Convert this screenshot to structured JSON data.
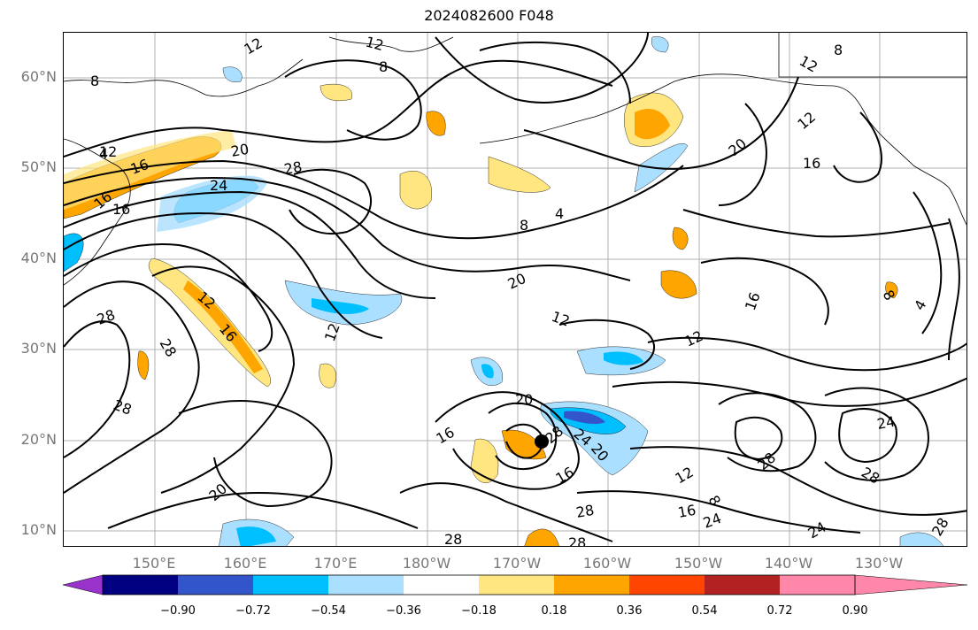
{
  "title": "2024082600 F048",
  "lat_labels": [
    "60°N",
    "50°N",
    "40°N",
    "30°N",
    "20°N",
    "10°N"
  ],
  "lon_labels": [
    "150°E",
    "160°E",
    "170°E",
    "180°W",
    "170°W",
    "160°W",
    "150°W",
    "140°W",
    "130°W"
  ],
  "contour_labels": [
    "12",
    "8",
    "12",
    "4",
    "8",
    "20",
    "16",
    "12",
    "16",
    "28",
    "24",
    "16",
    "8",
    "4",
    "20",
    "28",
    "12",
    "16",
    "28",
    "20",
    "12",
    "12",
    "12",
    "28",
    "16",
    "20",
    "28",
    "24",
    "20",
    "16",
    "28",
    "28",
    "28",
    "16",
    "24",
    "12",
    "8",
    "28",
    "24",
    "28",
    "24",
    "12",
    "8",
    "16",
    "8",
    "4",
    "12",
    "16",
    "20",
    "28"
  ],
  "colorbar": {
    "ticks": [
      "−0.90",
      "−0.72",
      "−0.54",
      "−0.36",
      "−0.18",
      "0.18",
      "0.36",
      "0.54",
      "0.72",
      "0.90"
    ],
    "colors": [
      "#9933cc",
      "#000080",
      "#3355cc",
      "#00bfff",
      "#aadfff",
      "#ffffff",
      "#ffe680",
      "#ffa500",
      "#ff4500",
      "#b22222",
      "#ff88aa"
    ]
  },
  "shading_colors": {
    "light_blue": "#aadfff",
    "blue": "#00bfff",
    "dark_blue": "#3355cc",
    "yellow": "#ffe680",
    "orange": "#ffa500",
    "red": "#ff4500"
  }
}
